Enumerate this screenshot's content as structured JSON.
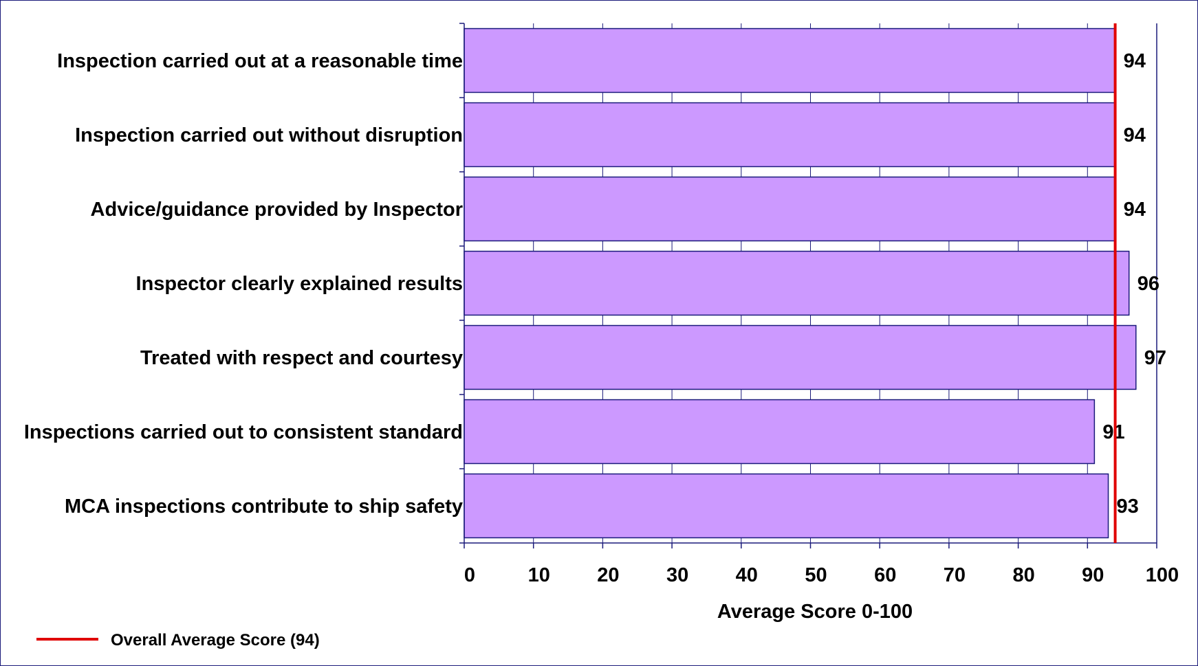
{
  "chart_data": {
    "type": "bar",
    "orientation": "horizontal",
    "categories": [
      "Inspection carried out at a reasonable time",
      "Inspection carried out without disruption",
      "Advice/guidance provided by Inspector",
      "Inspector clearly explained results",
      "Treated with respect and courtesy",
      "Inspections carried out to consistent standard",
      "MCA inspections contribute to ship safety"
    ],
    "values": [
      94,
      94,
      94,
      96,
      97,
      91,
      93
    ],
    "value_labels": [
      "94",
      "94",
      "94",
      "96",
      "97",
      "91",
      "93"
    ],
    "xlabel": "Average Score 0-100",
    "xlim": [
      0,
      100
    ],
    "xticks": [
      "0",
      "10",
      "20",
      "30",
      "40",
      "50",
      "60",
      "70",
      "80",
      "90",
      "100"
    ],
    "grid": "vertical gridlines",
    "reference_line": {
      "value": 94,
      "label": "Overall Average Score (94)",
      "color": "#e00000"
    },
    "legend_position": "bottom-left",
    "bar_color": "#cc99ff",
    "bar_edge_color": "#1a1a7a"
  }
}
